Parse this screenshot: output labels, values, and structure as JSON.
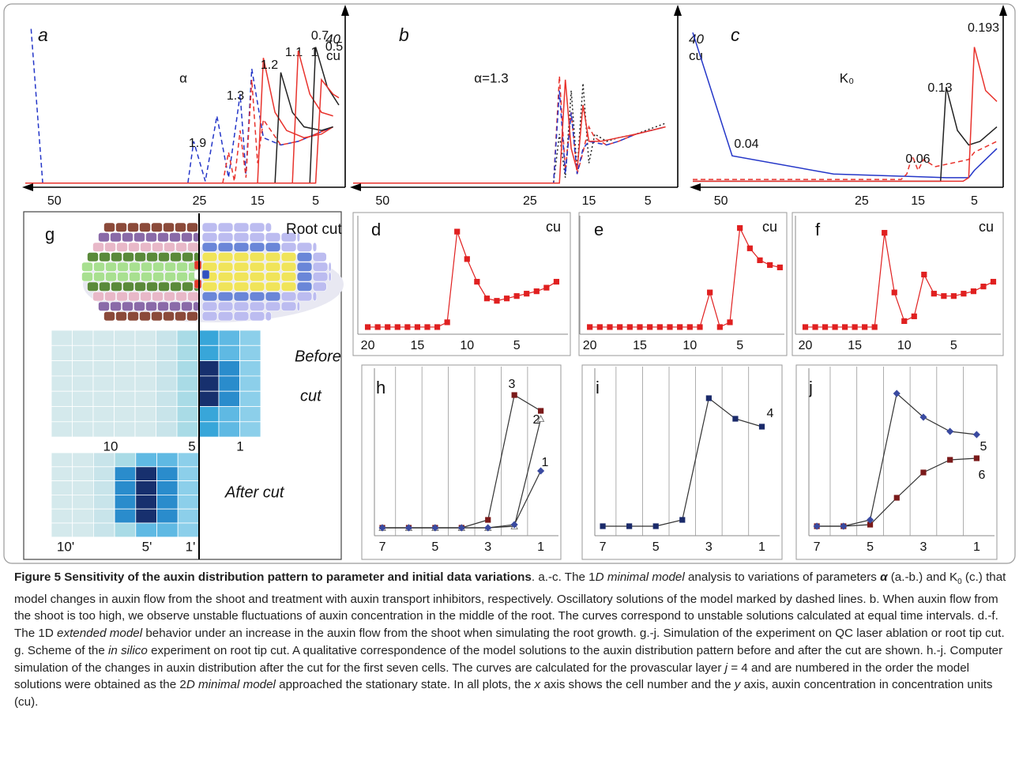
{
  "chart_data": [
    {
      "type": "line",
      "panel_label": "a",
      "title": "α",
      "xlim": [
        55,
        1
      ],
      "ylim": [
        0,
        44
      ],
      "xticks": [
        50,
        25,
        15,
        5
      ],
      "yticks": [
        40
      ],
      "ylabel": "cu",
      "series": [
        {
          "name": "1.9",
          "color": "#2436c8",
          "dash": "dashed",
          "x": [
            54,
            52,
            27,
            26,
            24,
            22,
            20,
            18,
            17,
            16,
            14,
            11,
            8,
            5,
            2
          ],
          "values": [
            43,
            0.5,
            0.5,
            12,
            1,
            19,
            2,
            25,
            3,
            32,
            13,
            11,
            12,
            14,
            16
          ]
        },
        {
          "name": "1.3",
          "color": "#e8322c",
          "dash": "dashed",
          "x": [
            55,
            21,
            20,
            19,
            18,
            17,
            16,
            15,
            14,
            11,
            8,
            5,
            2
          ],
          "values": [
            0.5,
            0.5,
            9,
            1,
            15,
            2,
            29,
            6,
            18,
            11,
            12,
            14,
            16
          ]
        },
        {
          "name": "1.2",
          "color": "#e8322c",
          "dash": "solid",
          "x": [
            55,
            15,
            14,
            12,
            10,
            7,
            4,
            2
          ],
          "values": [
            0.5,
            0.5,
            35,
            20,
            15,
            13,
            14,
            16
          ]
        },
        {
          "name": "1.1",
          "color": "#222222",
          "dash": "solid",
          "x": [
            55,
            12,
            11,
            9,
            7,
            4,
            2
          ],
          "values": [
            0.5,
            0.5,
            31,
            20,
            16,
            15,
            16
          ]
        },
        {
          "name": "1",
          "color": "#e8322c",
          "dash": "solid",
          "x": [
            55,
            9,
            8,
            6,
            4,
            2
          ],
          "values": [
            0.5,
            0.5,
            37,
            25,
            20,
            19
          ]
        },
        {
          "name": "0.7",
          "color": "#222222",
          "dash": "solid",
          "x": [
            55,
            6,
            5,
            3,
            1
          ],
          "values": [
            0.5,
            0.5,
            38,
            27,
            22
          ]
        },
        {
          "name": "0.5",
          "color": "#e8322c",
          "dash": "solid",
          "x": [
            55,
            5,
            4,
            2,
            1
          ],
          "values": [
            0.5,
            0.5,
            29,
            25,
            24
          ]
        }
      ]
    },
    {
      "type": "line",
      "panel_label": "b",
      "title": "α=1.3",
      "xlim": [
        55,
        1
      ],
      "ylim": [
        0,
        44
      ],
      "xticks": [
        50,
        25,
        15,
        5
      ],
      "yticks": [
        40
      ],
      "ylabel": "cu",
      "series": [
        {
          "color": "#222222",
          "dash": "dotted",
          "x": [
            55,
            21,
            20,
            19,
            18,
            17,
            16,
            15,
            14,
            12,
            10,
            7,
            2
          ],
          "values": [
            0.5,
            0.5,
            14,
            2,
            26,
            4,
            28,
            6,
            14,
            12,
            13,
            14,
            17
          ]
        },
        {
          "color": "#e8322c",
          "dash": "dashed",
          "x": [
            55,
            21,
            20,
            19,
            18,
            17,
            16,
            15,
            14,
            12,
            10,
            7,
            2
          ],
          "values": [
            0.5,
            0.5,
            30,
            4,
            20,
            3,
            9,
            16,
            13,
            11,
            12,
            14,
            16
          ]
        },
        {
          "color": "#2436c8",
          "dash": "dashed",
          "x": [
            55,
            21,
            20,
            19,
            18,
            17,
            16,
            15,
            12,
            10,
            7,
            2
          ],
          "values": [
            0.5,
            0.5,
            26,
            3,
            20,
            3,
            10,
            12,
            11,
            12,
            14,
            16
          ]
        },
        {
          "color": "#e8322c",
          "dash": "solid",
          "x": [
            55,
            20,
            19,
            18,
            17,
            16,
            15,
            13,
            10,
            7,
            2
          ],
          "values": [
            0.5,
            0.5,
            29,
            10,
            4,
            22,
            12,
            12,
            13,
            14,
            16
          ]
        }
      ]
    },
    {
      "type": "line",
      "panel_label": "c",
      "title": "K₀",
      "xlim": [
        55,
        1
      ],
      "ylim": [
        0,
        44
      ],
      "xticks": [
        50,
        25,
        15,
        5
      ],
      "series": [
        {
          "name": "0.04",
          "color": "#2436c8",
          "dash": "solid",
          "x": [
            55,
            48,
            30,
            10,
            6,
            5,
            1
          ],
          "values": [
            42,
            8,
            3,
            2,
            2,
            4,
            10
          ]
        },
        {
          "name": "0.06",
          "color": "#e8322c",
          "dash": "dashed",
          "x": [
            55,
            18,
            17,
            16,
            15,
            14,
            12,
            9,
            6,
            5,
            1
          ],
          "values": [
            1.5,
            1.5,
            3,
            8,
            4,
            7,
            5,
            6,
            7,
            9,
            12
          ]
        },
        {
          "name": "0.13",
          "color": "#222222",
          "dash": "solid",
          "x": [
            55,
            11,
            10,
            8,
            6,
            4,
            1
          ],
          "values": [
            1,
            1,
            27,
            15,
            11,
            12,
            16
          ]
        },
        {
          "name": "0.193",
          "color": "#e8322c",
          "dash": "solid",
          "x": [
            55,
            7,
            6,
            5,
            3,
            1
          ],
          "values": [
            1,
            1,
            2,
            38,
            26,
            23
          ]
        }
      ]
    },
    {
      "type": "line",
      "panel_label": "d",
      "ylabel": "cu",
      "xlim": [
        21,
        0
      ],
      "ylim": [
        0,
        100
      ],
      "xticks": [
        20,
        15,
        10,
        5
      ],
      "x": [
        20,
        19,
        18,
        17,
        16,
        15,
        14,
        13,
        12,
        11,
        10,
        9,
        8,
        7,
        6,
        5,
        4,
        3,
        2,
        1
      ],
      "series": [
        {
          "color": "#e02020",
          "marker": "square",
          "values": [
            6,
            6,
            6,
            6,
            6,
            6,
            6,
            6,
            10,
            86,
            63,
            44,
            30,
            28,
            30,
            32,
            34,
            36,
            39,
            44
          ]
        }
      ]
    },
    {
      "type": "line",
      "panel_label": "e",
      "ylabel": "cu",
      "xlim": [
        21,
        0
      ],
      "ylim": [
        0,
        100
      ],
      "xticks": [
        20,
        15,
        10,
        5
      ],
      "x": [
        20,
        19,
        18,
        17,
        16,
        15,
        14,
        13,
        12,
        11,
        10,
        9,
        8,
        7,
        6,
        5,
        4,
        3,
        2,
        1
      ],
      "series": [
        {
          "color": "#e02020",
          "marker": "square",
          "values": [
            6,
            6,
            6,
            6,
            6,
            6,
            6,
            6,
            6,
            6,
            6,
            6,
            35,
            6,
            10,
            89,
            72,
            62,
            58,
            56
          ]
        }
      ]
    },
    {
      "type": "line",
      "panel_label": "f",
      "ylabel": "cu",
      "xlim": [
        21,
        0
      ],
      "ylim": [
        0,
        100
      ],
      "xticks": [
        20,
        15,
        10,
        5
      ],
      "x": [
        20,
        19,
        18,
        17,
        16,
        15,
        14,
        13,
        12,
        11,
        10,
        9,
        8,
        7,
        6,
        5,
        4,
        3,
        2,
        1
      ],
      "series": [
        {
          "color": "#e02020",
          "marker": "square",
          "values": [
            6,
            6,
            6,
            6,
            6,
            6,
            6,
            6,
            85,
            35,
            11,
            15,
            50,
            34,
            32,
            32,
            34,
            36,
            40,
            44
          ]
        }
      ]
    },
    {
      "type": "line",
      "panel_label": "h",
      "line_color": "#333333",
      "xlim": [
        7.3,
        0.3
      ],
      "ylim": [
        0,
        100
      ],
      "xticks": [
        7,
        5,
        3,
        1
      ],
      "x": [
        7,
        6,
        5,
        4,
        3,
        2,
        1
      ],
      "series": [
        {
          "name": "3",
          "color": "#7a1a1a",
          "marker": "square",
          "values": [
            5,
            5,
            5,
            5,
            10,
            89,
            79
          ]
        },
        {
          "name": "2",
          "color": "#ffffff",
          "marker": "triangle",
          "values": [
            5,
            5,
            5,
            5,
            5,
            6,
            74
          ]
        },
        {
          "name": "1",
          "color": "#3a4aa0",
          "marker": "diamond",
          "values": [
            5,
            5,
            5,
            5,
            5,
            7,
            41
          ]
        }
      ]
    },
    {
      "type": "line",
      "panel_label": "i",
      "line_color": "#333333",
      "xlim": [
        7.3,
        0.3
      ],
      "ylim": [
        0,
        100
      ],
      "xticks": [
        7,
        5,
        3,
        1
      ],
      "x": [
        7,
        6,
        5,
        4,
        3,
        2,
        1
      ],
      "series": [
        {
          "name": "4",
          "color": "#1a2a6a",
          "marker": "square",
          "values": [
            6,
            6,
            6,
            10,
            87,
            74,
            69
          ]
        }
      ]
    },
    {
      "type": "line",
      "panel_label": "j",
      "line_color": "#333333",
      "xlim": [
        7.3,
        0.3
      ],
      "ylim": [
        0,
        100
      ],
      "xticks": [
        7,
        5,
        3,
        1
      ],
      "x": [
        7,
        6,
        5,
        4,
        3,
        2,
        1
      ],
      "series": [
        {
          "name": "5",
          "color": "#7a1a1a",
          "marker": "square",
          "values": [
            6,
            6,
            7,
            24,
            40,
            48,
            49
          ]
        },
        {
          "name": "6",
          "color": "#3a4aa0",
          "marker": "diamond",
          "values": [
            6,
            6,
            10,
            90,
            75,
            66,
            64
          ]
        }
      ]
    }
  ],
  "diagram": {
    "label": "g",
    "title": "Root cut",
    "before_cut": {
      "label": [
        "Before",
        "cut"
      ],
      "ticks": [
        "10",
        "5",
        "1"
      ]
    },
    "after_cut": {
      "label": "After cut",
      "ticks": [
        "10'",
        "5'",
        "1'"
      ]
    }
  },
  "caption": [
    {
      "text": "Figure 5 Sensitivity of the auxin distribution pattern to parameter and initial data variations",
      "style": "b"
    },
    {
      "text": ". a.-c. The 1"
    },
    {
      "text": "D minimal model",
      "style": "i"
    },
    {
      "text": " analysis to variations of parameters "
    },
    {
      "text": "α",
      "style": "bi"
    },
    {
      "text": " (a.-b.) and K"
    },
    {
      "text": "0",
      "style": "sub"
    },
    {
      "text": " (c.) that model changes in auxin flow from the shoot and treatment with auxin transport inhibitors, respectively. Oscillatory solutions of the model marked by dashed lines. b. When auxin flow from the shoot is too high, we observe unstable fluctuations of auxin concentration in the middle of the root. The curves correspond to unstable solutions calculated at equal time intervals. d.-f. The 1D "
    },
    {
      "text": "extended model",
      "style": "i"
    },
    {
      "text": " behavior under an increase in the auxin flow from the shoot when simulating the root growth. g.-j. Simulation of the experiment on QC laser ablation or root tip cut. g. Scheme of the "
    },
    {
      "text": "in silico",
      "style": "i"
    },
    {
      "text": " experiment on root tip cut. A qualitative correspondence of the model solutions to the auxin distribution pattern before and after the cut are shown. h.-j. Computer simulation of the changes in auxin distribution after the cut for the first seven cells. The curves are calculated for the provascular layer "
    },
    {
      "text": "j",
      "style": "i"
    },
    {
      "text": " = 4 and are numbered in the order the model solutions were obtained as the 2"
    },
    {
      "text": "D minimal model",
      "style": "i"
    },
    {
      "text": " approached the stationary state. In all plots, the "
    },
    {
      "text": "x",
      "style": "i"
    },
    {
      "text": " axis shows the cell number and the "
    },
    {
      "text": "y",
      "style": "i"
    },
    {
      "text": " axis, auxin concentration in concentration units (cu)."
    }
  ]
}
